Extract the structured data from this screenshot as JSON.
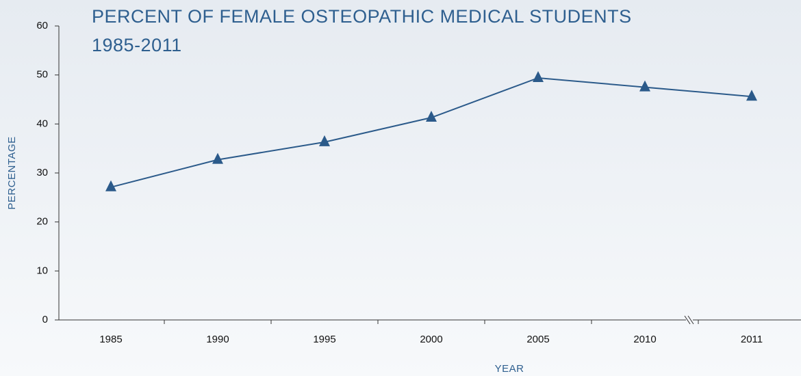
{
  "chart_data": {
    "type": "line",
    "title": "PERCENT OF FEMALE OSTEOPATHIC MEDICAL STUDENTS",
    "subtitle": "1985-2011",
    "x_label": "YEAR",
    "y_label": "PERCENTAGE",
    "categories": [
      "1985",
      "1990",
      "1995",
      "2000",
      "2005",
      "2010",
      "2011"
    ],
    "series": [
      {
        "color": "#2b5a8a",
        "values": [
          27.1,
          32.7,
          36.3,
          41.3,
          49.4,
          47.5,
          45.6
        ]
      }
    ],
    "ylim": [
      0,
      60
    ],
    "yticks": [
      0,
      10,
      20,
      30,
      40,
      50,
      60
    ],
    "grid": false
  }
}
